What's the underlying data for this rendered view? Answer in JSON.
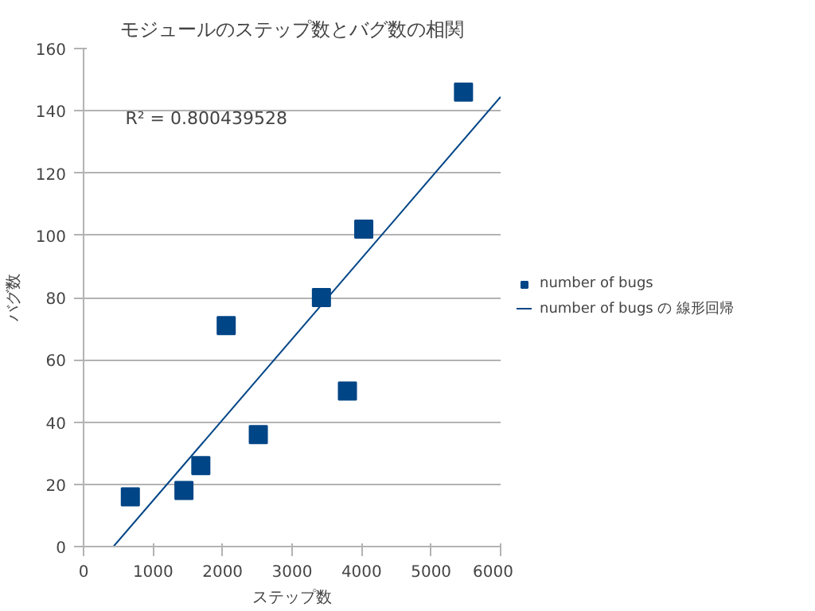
{
  "chart_data": {
    "type": "scatter",
    "title": "モジュールのステップ数とバグ数の相関",
    "xlabel": "ステップ数",
    "ylabel": "バグ数",
    "xlim": [
      0,
      6000
    ],
    "xticks": [
      0,
      1000,
      2000,
      3000,
      4000,
      5000,
      6000
    ],
    "ylim": [
      0,
      160
    ],
    "yticks": [
      0,
      20,
      40,
      60,
      80,
      100,
      120,
      140,
      160
    ],
    "grid": "y",
    "legend": "right",
    "marker": "square",
    "series": [
      {
        "name": "number of bugs",
        "color": "#004586",
        "x": [
          673,
          1444,
          1687,
          2052,
          2514,
          3422,
          3796,
          4031,
          5466
        ],
        "values": [
          16,
          18,
          26,
          71,
          36,
          80,
          50,
          102,
          146
        ]
      },
      {
        "name": "number of bugs の 線形回帰",
        "type": "line",
        "color": "#004586",
        "marker": "none",
        "line_style": "solid",
        "x": [
          430,
          6000
        ],
        "values": [
          0,
          144.5
        ]
      }
    ],
    "annotations": [
      "R² = 0.800439528"
    ]
  }
}
